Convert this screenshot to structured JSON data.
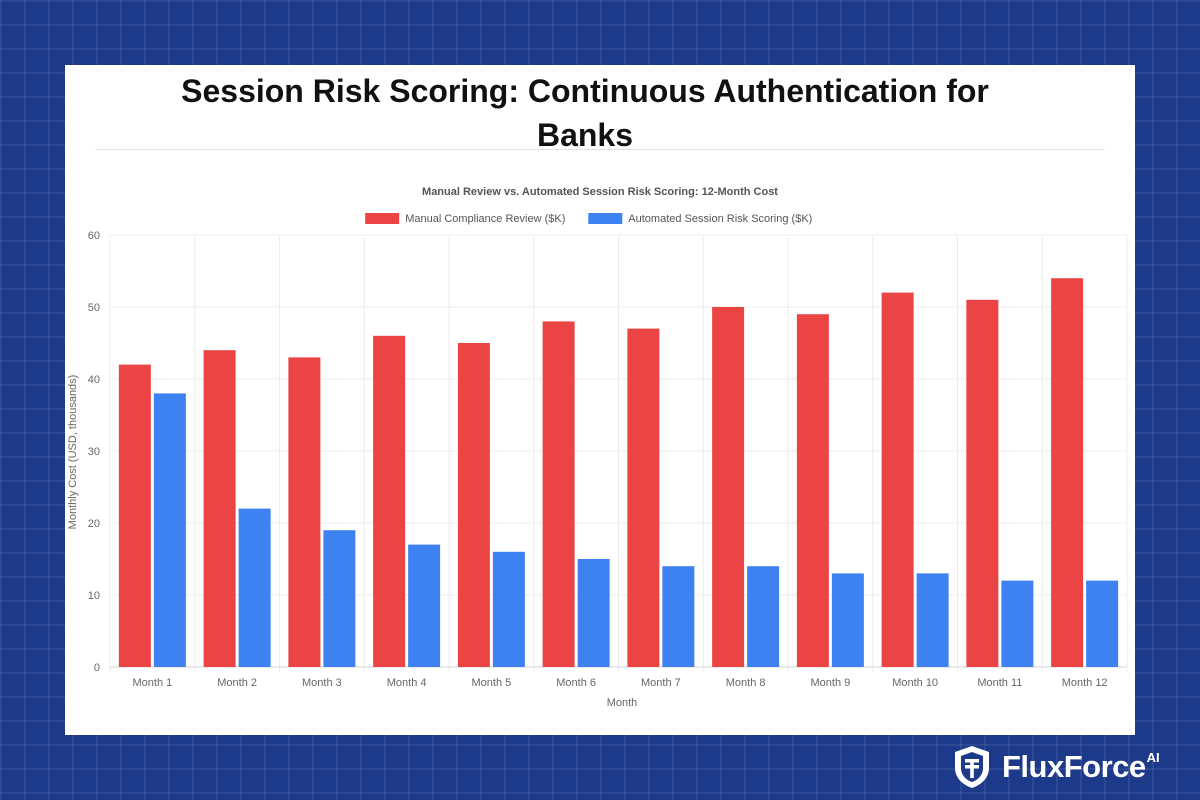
{
  "page": {
    "title": "Session Risk Scoring: Continuous Authentication for Banks"
  },
  "brand": {
    "name": "FluxForce",
    "suffix": "AI",
    "icon": "shield-logo-icon"
  },
  "colors": {
    "background": "#1d3a8a",
    "manual": "#ea4444",
    "automated": "#3d82f0"
  },
  "chart_data": {
    "type": "bar",
    "title": "Manual Review vs. Automated Session Risk Scoring: 12-Month Cost",
    "xlabel": "Month",
    "ylabel": "Monthly Cost (USD, thousands)",
    "ylim": [
      0,
      60
    ],
    "yticks": [
      0,
      10,
      20,
      30,
      40,
      50,
      60
    ],
    "grid": true,
    "legend_position": "top-center",
    "categories": [
      "Month 1",
      "Month 2",
      "Month 3",
      "Month 4",
      "Month 5",
      "Month 6",
      "Month 7",
      "Month 8",
      "Month 9",
      "Month 10",
      "Month 11",
      "Month 12"
    ],
    "series": [
      {
        "name": "Manual Compliance Review ($K)",
        "color": "#ea4444",
        "values": [
          42,
          44,
          43,
          46,
          45,
          48,
          47,
          50,
          49,
          52,
          51,
          54
        ]
      },
      {
        "name": "Automated Session Risk Scoring ($K)",
        "color": "#3d82f0",
        "values": [
          38,
          22,
          19,
          17,
          16,
          15,
          14,
          14,
          13,
          13,
          12,
          12
        ]
      }
    ]
  }
}
